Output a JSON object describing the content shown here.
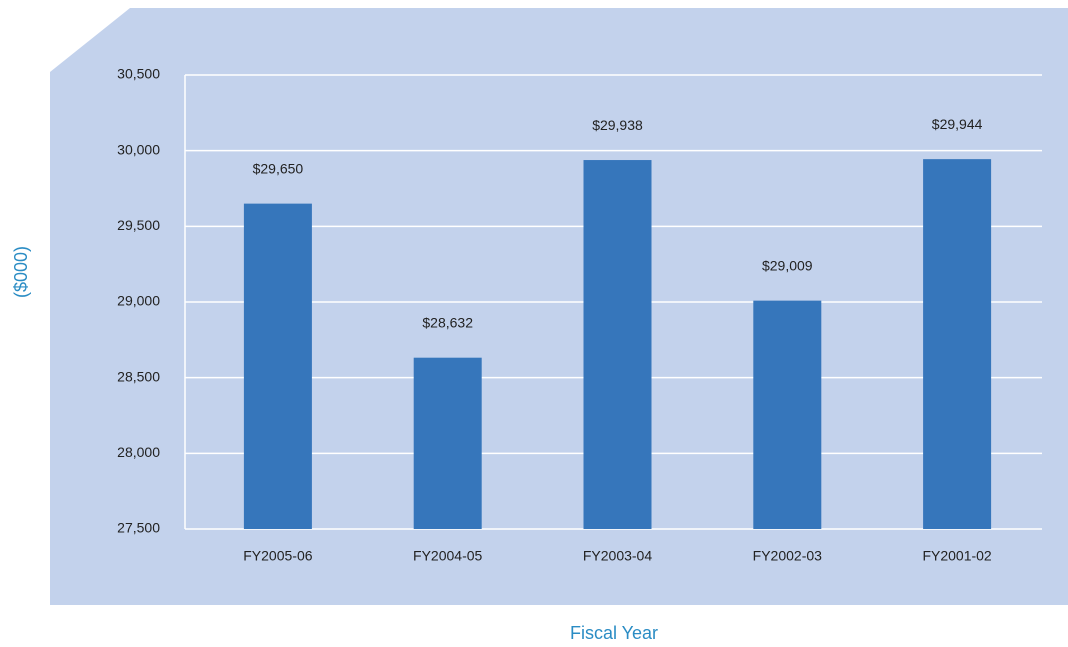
{
  "chart_data": {
    "type": "bar",
    "xlabel": "Fiscal Year",
    "ylabel": "($000)",
    "categories": [
      "FY2005-06",
      "FY2004-05",
      "FY2003-04",
      "FY2002-03",
      "FY2001-02"
    ],
    "values": [
      29650,
      28632,
      29938,
      29009,
      29944
    ],
    "value_labels": [
      "$29,650",
      "$28,632",
      "$29,938",
      "$29,009",
      "$29,944"
    ],
    "color": "#3676bb",
    "ylim": [
      27500,
      30500
    ],
    "yticks": [
      {
        "value": 27500,
        "label": "27,500"
      },
      {
        "value": 28000,
        "label": "28,000"
      },
      {
        "value": 28500,
        "label": "28,500"
      },
      {
        "value": 29000,
        "label": "29,000"
      },
      {
        "value": 29500,
        "label": "29,500"
      },
      {
        "value": 30000,
        "label": "30,000"
      },
      {
        "value": 30500,
        "label": "30,500"
      }
    ],
    "grid": true
  }
}
